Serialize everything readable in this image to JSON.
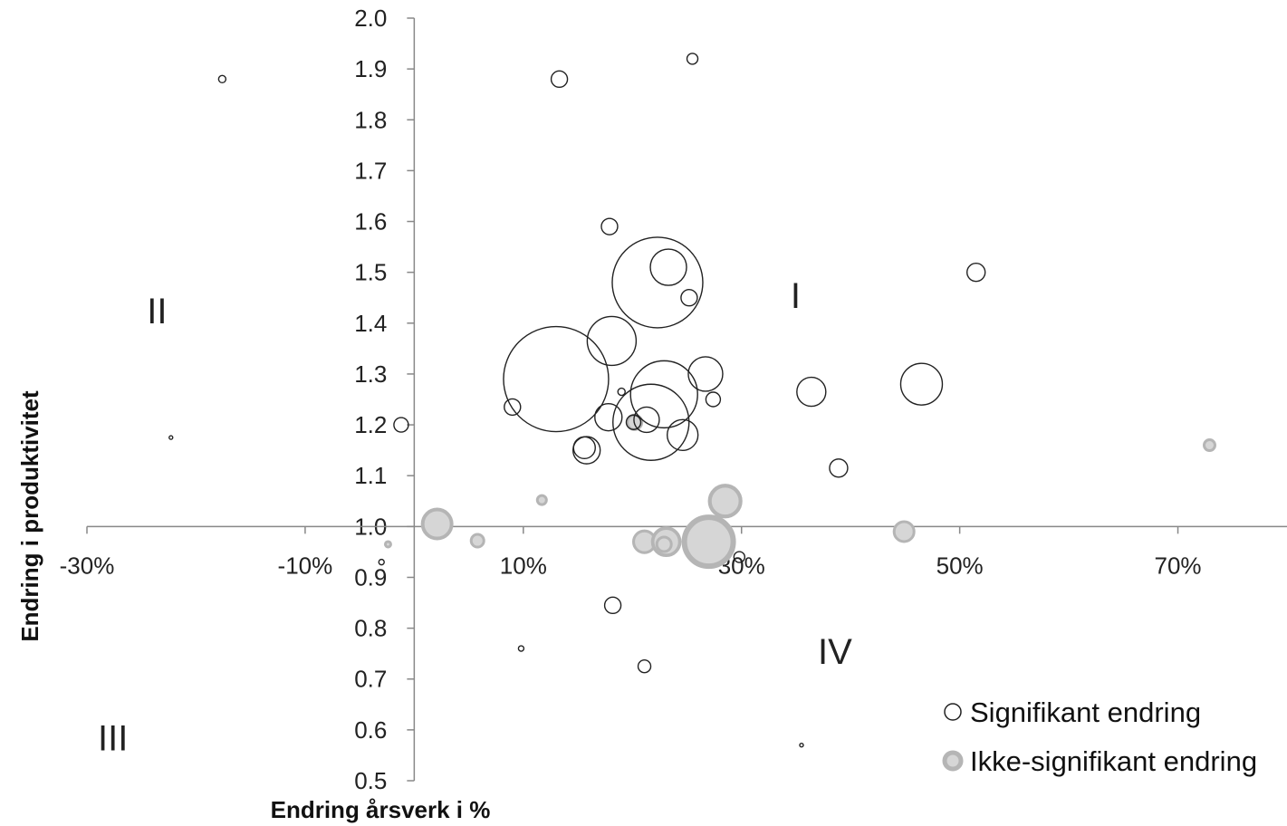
{
  "chart_data": {
    "type": "bubble",
    "title": "",
    "xlabel": "Endring årsverk i %",
    "ylabel": "Endring i produktivitet",
    "xlim": [
      -0.3,
      0.8
    ],
    "ylim": [
      0.5,
      2.0
    ],
    "x_ticks": [
      {
        "value": -0.3,
        "label": "-30%"
      },
      {
        "value": -0.1,
        "label": "-10%"
      },
      {
        "value": 0.1,
        "label": "10%"
      },
      {
        "value": 0.3,
        "label": "30%"
      },
      {
        "value": 0.5,
        "label": "50%"
      },
      {
        "value": 0.7,
        "label": "70%"
      }
    ],
    "y_ticks": [
      {
        "value": 2.0,
        "label": "2.0"
      },
      {
        "value": 1.9,
        "label": "1.9"
      },
      {
        "value": 1.8,
        "label": "1.8"
      },
      {
        "value": 1.7,
        "label": "1.7"
      },
      {
        "value": 1.6,
        "label": "1.6"
      },
      {
        "value": 1.5,
        "label": "1.5"
      },
      {
        "value": 1.4,
        "label": "1.4"
      },
      {
        "value": 1.3,
        "label": "1.3"
      },
      {
        "value": 1.2,
        "label": "1.2"
      },
      {
        "value": 1.1,
        "label": "1.1"
      },
      {
        "value": 1.0,
        "label": "1.0"
      },
      {
        "value": 0.9,
        "label": "0.9"
      },
      {
        "value": 0.8,
        "label": "0.8"
      },
      {
        "value": 0.7,
        "label": "0.7"
      },
      {
        "value": 0.6,
        "label": "0.6"
      },
      {
        "value": 0.5,
        "label": "0.5"
      }
    ],
    "quadrants": [
      {
        "label": "I",
        "x": 0.345,
        "y": 1.43
      },
      {
        "label": "II",
        "x": -0.245,
        "y": 1.4
      },
      {
        "label": "III",
        "x": -0.29,
        "y": 0.56
      },
      {
        "label": "IV",
        "x": 0.37,
        "y": 0.73
      }
    ],
    "legend_position": "bottom-right",
    "series": [
      {
        "name": "Signifikant endring",
        "color": "#222222",
        "fill": "#ffffff",
        "style": "outline",
        "points": [
          {
            "x": -0.176,
            "y": 1.88,
            "size": 4
          },
          {
            "x": 0.133,
            "y": 1.88,
            "size": 9
          },
          {
            "x": 0.255,
            "y": 1.92,
            "size": 6
          },
          {
            "x": 0.179,
            "y": 1.59,
            "size": 9
          },
          {
            "x": 0.223,
            "y": 1.48,
            "size": 50
          },
          {
            "x": 0.233,
            "y": 1.51,
            "size": 20
          },
          {
            "x": 0.252,
            "y": 1.45,
            "size": 9
          },
          {
            "x": 0.515,
            "y": 1.5,
            "size": 10
          },
          {
            "x": 0.181,
            "y": 1.365,
            "size": 27
          },
          {
            "x": 0.13,
            "y": 1.29,
            "size": 58
          },
          {
            "x": 0.229,
            "y": 1.26,
            "size": 37
          },
          {
            "x": 0.217,
            "y": 1.205,
            "size": 42
          },
          {
            "x": 0.267,
            "y": 1.3,
            "size": 19
          },
          {
            "x": 0.364,
            "y": 1.265,
            "size": 16
          },
          {
            "x": 0.465,
            "y": 1.28,
            "size": 23
          },
          {
            "x": 0.19,
            "y": 1.265,
            "size": 4
          },
          {
            "x": 0.274,
            "y": 1.25,
            "size": 8
          },
          {
            "x": 0.09,
            "y": 1.235,
            "size": 9
          },
          {
            "x": -0.012,
            "y": 1.2,
            "size": 8
          },
          {
            "x": 0.178,
            "y": 1.215,
            "size": 15
          },
          {
            "x": 0.213,
            "y": 1.21,
            "size": 14
          },
          {
            "x": 0.201,
            "y": 1.205,
            "size": 8
          },
          {
            "x": 0.246,
            "y": 1.18,
            "size": 17
          },
          {
            "x": 0.156,
            "y": 1.155,
            "size": 12
          },
          {
            "x": 0.158,
            "y": 1.15,
            "size": 15
          },
          {
            "x": 0.389,
            "y": 1.115,
            "size": 10
          },
          {
            "x": -0.223,
            "y": 1.175,
            "size": 2
          },
          {
            "x": -0.03,
            "y": 0.93,
            "size": 3
          },
          {
            "x": 0.298,
            "y": 0.94,
            "size": 6
          },
          {
            "x": 0.182,
            "y": 0.845,
            "size": 9
          },
          {
            "x": 0.098,
            "y": 0.76,
            "size": 3
          },
          {
            "x": 0.211,
            "y": 0.725,
            "size": 7
          },
          {
            "x": 0.355,
            "y": 0.57,
            "size": 2
          }
        ]
      },
      {
        "name": "Ikke-signifikant endring",
        "color": "#b5b5b5",
        "fill": "#d6d6d6",
        "style": "filled-ring",
        "points": [
          {
            "x": 0.021,
            "y": 1.005,
            "size": 18
          },
          {
            "x": 0.058,
            "y": 0.972,
            "size": 9
          },
          {
            "x": -0.024,
            "y": 0.965,
            "size": 5
          },
          {
            "x": 0.117,
            "y": 1.052,
            "size": 7
          },
          {
            "x": 0.202,
            "y": 1.205,
            "size": 10
          },
          {
            "x": 0.211,
            "y": 0.97,
            "size": 14
          },
          {
            "x": 0.231,
            "y": 0.97,
            "size": 17
          },
          {
            "x": 0.229,
            "y": 0.965,
            "size": 10
          },
          {
            "x": 0.27,
            "y": 0.97,
            "size": 29
          },
          {
            "x": 0.285,
            "y": 1.05,
            "size": 19
          },
          {
            "x": 0.449,
            "y": 0.99,
            "size": 13
          },
          {
            "x": 0.729,
            "y": 1.16,
            "size": 8
          }
        ]
      }
    ]
  },
  "legend": {
    "items": [
      {
        "label": "Signifikant endring"
      },
      {
        "label": "Ikke-signifikant endring"
      }
    ]
  }
}
